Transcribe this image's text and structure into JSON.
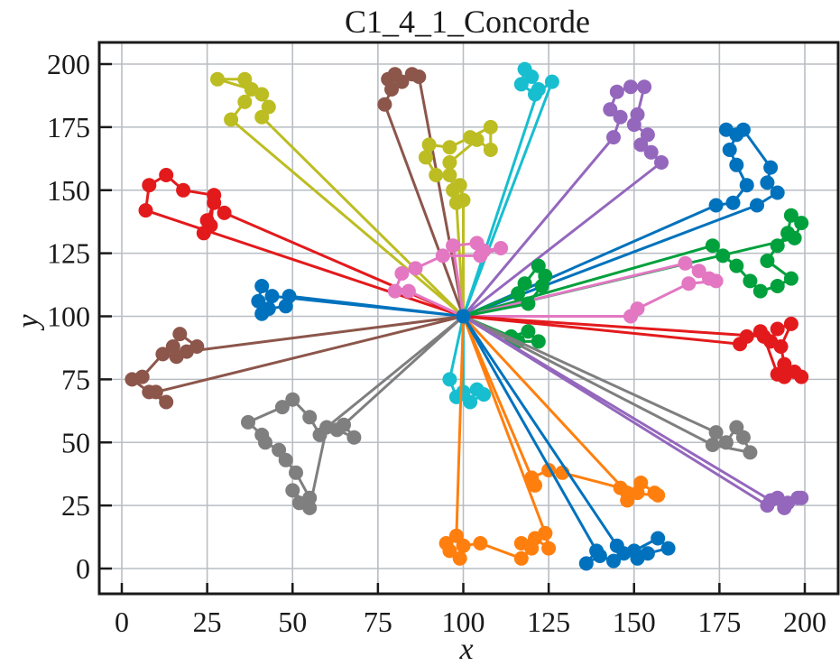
{
  "chart_data": {
    "type": "line",
    "subtype": "vehicle-routing-plot",
    "title": "C1_4_1_Concorde",
    "xlabel": "x",
    "ylabel": "y",
    "xlim": [
      -7,
      210
    ],
    "ylim": [
      -10,
      210
    ],
    "xticks": [
      0,
      25,
      50,
      75,
      100,
      125,
      150,
      175,
      200
    ],
    "yticks": [
      0,
      25,
      50,
      75,
      100,
      125,
      150,
      175,
      200
    ],
    "grid": true,
    "legend": "none",
    "depot": {
      "x": 100,
      "y": 100
    },
    "series": [
      {
        "name": "route-olive-top-left",
        "color": "#bcbd22",
        "points": [
          [
            100,
            100
          ],
          [
            32,
            178
          ],
          [
            36,
            185
          ],
          [
            38,
            190
          ],
          [
            28,
            194
          ],
          [
            36,
            194
          ],
          [
            41,
            188
          ],
          [
            43,
            183
          ],
          [
            41,
            179
          ],
          [
            100,
            100
          ]
        ]
      },
      {
        "name": "route-red-left",
        "color": "#e31a1c",
        "points": [
          [
            100,
            100
          ],
          [
            30,
            141
          ],
          [
            27,
            145
          ],
          [
            25,
            138
          ],
          [
            24,
            133
          ],
          [
            26,
            136
          ],
          [
            27,
            148
          ],
          [
            18,
            150
          ],
          [
            13,
            156
          ],
          [
            8,
            152
          ],
          [
            7,
            142
          ],
          [
            100,
            100
          ]
        ]
      },
      {
        "name": "route-brown-top",
        "color": "#8c564b",
        "points": [
          [
            100,
            100
          ],
          [
            87,
            195
          ],
          [
            85,
            196
          ],
          [
            82,
            193
          ],
          [
            80,
            196
          ],
          [
            78,
            194
          ],
          [
            79,
            190
          ],
          [
            77,
            184
          ],
          [
            100,
            100
          ]
        ]
      },
      {
        "name": "route-olive-center",
        "color": "#bcbd22",
        "points": [
          [
            100,
            100
          ],
          [
            100,
            146
          ],
          [
            99,
            152
          ],
          [
            96,
            156
          ],
          [
            92,
            156
          ],
          [
            89,
            163
          ],
          [
            90,
            168
          ],
          [
            96,
            167
          ],
          [
            102,
            171
          ],
          [
            108,
            175
          ],
          [
            108,
            166
          ],
          [
            104,
            170
          ],
          [
            96,
            161
          ],
          [
            97,
            150
          ],
          [
            98,
            145
          ],
          [
            100,
            100
          ]
        ]
      },
      {
        "name": "route-cyan-top",
        "color": "#17becf",
        "points": [
          [
            100,
            100
          ],
          [
            122,
            190
          ],
          [
            120,
            195
          ],
          [
            118,
            198
          ],
          [
            117,
            192
          ],
          [
            121,
            188
          ],
          [
            126,
            193
          ],
          [
            100,
            100
          ]
        ]
      },
      {
        "name": "route-purple-top",
        "color": "#9467bd",
        "points": [
          [
            100,
            100
          ],
          [
            144,
            171
          ],
          [
            146,
            179
          ],
          [
            143,
            182
          ],
          [
            145,
            189
          ],
          [
            149,
            191
          ],
          [
            153,
            191
          ],
          [
            151,
            180
          ],
          [
            150,
            176
          ],
          [
            154,
            172
          ],
          [
            152,
            168
          ],
          [
            155,
            165
          ],
          [
            158,
            161
          ],
          [
            100,
            100
          ]
        ]
      },
      {
        "name": "route-blue-top-right",
        "color": "#0072bd",
        "points": [
          [
            100,
            100
          ],
          [
            174,
            144
          ],
          [
            179,
            145
          ],
          [
            183,
            152
          ],
          [
            180,
            160
          ],
          [
            178,
            166
          ],
          [
            180,
            172
          ],
          [
            177,
            174
          ],
          [
            182,
            174
          ],
          [
            190,
            159
          ],
          [
            189,
            153
          ],
          [
            192,
            149
          ],
          [
            186,
            144
          ],
          [
            100,
            100
          ]
        ]
      },
      {
        "name": "route-green-right",
        "color": "#00a03c",
        "points": [
          [
            100,
            100
          ],
          [
            173,
            128
          ],
          [
            176,
            124
          ],
          [
            180,
            120
          ],
          [
            184,
            114
          ],
          [
            187,
            110
          ],
          [
            192,
            112
          ],
          [
            196,
            115
          ],
          [
            189,
            122
          ],
          [
            192,
            128
          ],
          [
            195,
            133
          ],
          [
            196,
            140
          ],
          [
            199,
            137
          ],
          [
            197,
            131
          ],
          [
            100,
            100
          ]
        ]
      },
      {
        "name": "route-pink-right",
        "color": "#e377c2",
        "points": [
          [
            100,
            100
          ],
          [
            165,
            121
          ],
          [
            169,
            118
          ],
          [
            172,
            115
          ],
          [
            174,
            114
          ],
          [
            166,
            113
          ],
          [
            151,
            103
          ],
          [
            149,
            100
          ],
          [
            100,
            100
          ]
        ]
      },
      {
        "name": "route-green-center",
        "color": "#00a03c",
        "points": [
          [
            100,
            100
          ],
          [
            116,
            109
          ],
          [
            118,
            113
          ],
          [
            122,
            120
          ],
          [
            124,
            116
          ],
          [
            123,
            112
          ],
          [
            119,
            105
          ],
          [
            100,
            100
          ]
        ]
      },
      {
        "name": "route-green-below",
        "color": "#00a03c",
        "points": [
          [
            100,
            100
          ],
          [
            114,
            92
          ],
          [
            119,
            94
          ],
          [
            122,
            90
          ],
          [
            116,
            90
          ],
          [
            100,
            100
          ]
        ]
      },
      {
        "name": "route-pink-center",
        "color": "#e377c2",
        "points": [
          [
            100,
            100
          ],
          [
            97,
            128
          ],
          [
            104,
            129
          ],
          [
            106,
            126
          ],
          [
            111,
            127
          ],
          [
            105,
            124
          ],
          [
            94,
            124
          ],
          [
            86,
            119
          ],
          [
            82,
            117
          ],
          [
            80,
            110
          ],
          [
            84,
            110
          ],
          [
            100,
            100
          ]
        ]
      },
      {
        "name": "route-blue-left",
        "color": "#0072bd",
        "points": [
          [
            100,
            100
          ],
          [
            49,
            108
          ],
          [
            48,
            104
          ],
          [
            43,
            103
          ],
          [
            41,
            101
          ],
          [
            40,
            106
          ],
          [
            41,
            112
          ],
          [
            44,
            108
          ],
          [
            100,
            100
          ]
        ]
      },
      {
        "name": "route-brown-left",
        "color": "#8c564b",
        "points": [
          [
            100,
            100
          ],
          [
            19,
            86
          ],
          [
            22,
            88
          ],
          [
            17,
            93
          ],
          [
            15,
            88
          ],
          [
            16,
            84
          ],
          [
            12,
            85
          ],
          [
            6,
            76
          ],
          [
            3,
            75
          ],
          [
            8,
            70
          ],
          [
            13,
            66
          ],
          [
            10,
            70
          ],
          [
            100,
            100
          ]
        ]
      },
      {
        "name": "route-red-right",
        "color": "#e31a1c",
        "points": [
          [
            100,
            100
          ],
          [
            181,
            89
          ],
          [
            183,
            92
          ],
          [
            187,
            94
          ],
          [
            190,
            90
          ],
          [
            192,
            95
          ],
          [
            196,
            97
          ],
          [
            193,
            88
          ],
          [
            194,
            81
          ],
          [
            197,
            78
          ],
          [
            199,
            76
          ],
          [
            194,
            76
          ],
          [
            192,
            77
          ],
          [
            188,
            92
          ],
          [
            100,
            100
          ]
        ]
      },
      {
        "name": "route-gray-left",
        "color": "#7f7f7f",
        "points": [
          [
            100,
            100
          ],
          [
            65,
            57
          ],
          [
            68,
            52
          ],
          [
            63,
            55
          ],
          [
            58,
            53
          ],
          [
            55,
            60
          ],
          [
            50,
            67
          ],
          [
            47,
            64
          ],
          [
            37,
            58
          ],
          [
            41,
            53
          ],
          [
            42,
            50
          ],
          [
            46,
            47
          ],
          [
            48,
            43
          ],
          [
            51,
            38
          ],
          [
            55,
            28
          ],
          [
            52,
            26
          ],
          [
            50,
            31
          ],
          [
            55,
            24
          ],
          [
            60,
            56
          ],
          [
            100,
            100
          ]
        ]
      },
      {
        "name": "route-cyan-center",
        "color": "#17becf",
        "points": [
          [
            100,
            100
          ],
          [
            96,
            75
          ],
          [
            98,
            68
          ],
          [
            102,
            66
          ],
          [
            106,
            69
          ],
          [
            104,
            71
          ],
          [
            100,
            70
          ],
          [
            100,
            100
          ]
        ]
      },
      {
        "name": "route-orange-bottom",
        "color": "#ff7f0e",
        "points": [
          [
            100,
            100
          ],
          [
            98,
            13
          ],
          [
            95,
            10
          ],
          [
            96,
            7
          ],
          [
            99,
            4
          ],
          [
            100,
            9
          ],
          [
            105,
            10
          ],
          [
            117,
            4
          ],
          [
            120,
            8
          ],
          [
            124,
            14
          ],
          [
            125,
            8
          ],
          [
            121,
            12
          ],
          [
            117,
            10
          ],
          [
            124,
            14
          ],
          [
            100,
            100
          ]
        ]
      },
      {
        "name": "route-orange-mid",
        "color": "#ff7f0e",
        "points": [
          [
            100,
            100
          ],
          [
            121,
            33
          ],
          [
            120,
            36
          ],
          [
            125,
            39
          ],
          [
            129,
            38
          ],
          [
            146,
            32
          ],
          [
            148,
            27
          ],
          [
            151,
            30
          ],
          [
            152,
            34
          ],
          [
            156,
            30
          ],
          [
            157,
            29
          ],
          [
            148,
            30
          ],
          [
            100,
            100
          ]
        ]
      },
      {
        "name": "route-blue-bottom",
        "color": "#0072bd",
        "points": [
          [
            100,
            100
          ],
          [
            139,
            7
          ],
          [
            136,
            2
          ],
          [
            140,
            5
          ],
          [
            144,
            3
          ],
          [
            147,
            6
          ],
          [
            151,
            4
          ],
          [
            154,
            6
          ],
          [
            160,
            8
          ],
          [
            157,
            12
          ],
          [
            150,
            7
          ],
          [
            145,
            9
          ],
          [
            100,
            100
          ]
        ]
      },
      {
        "name": "route-gray-right",
        "color": "#7f7f7f",
        "points": [
          [
            100,
            100
          ],
          [
            174,
            54
          ],
          [
            177,
            50
          ],
          [
            180,
            56
          ],
          [
            182,
            52
          ],
          [
            184,
            46
          ],
          [
            173,
            49
          ],
          [
            100,
            100
          ]
        ]
      },
      {
        "name": "route-purple-right",
        "color": "#9467bd",
        "points": [
          [
            100,
            100
          ],
          [
            189,
            25
          ],
          [
            192,
            28
          ],
          [
            195,
            26
          ],
          [
            198,
            28
          ],
          [
            199,
            28
          ],
          [
            194,
            24
          ],
          [
            190,
            27
          ],
          [
            100,
            100
          ]
        ]
      }
    ]
  }
}
